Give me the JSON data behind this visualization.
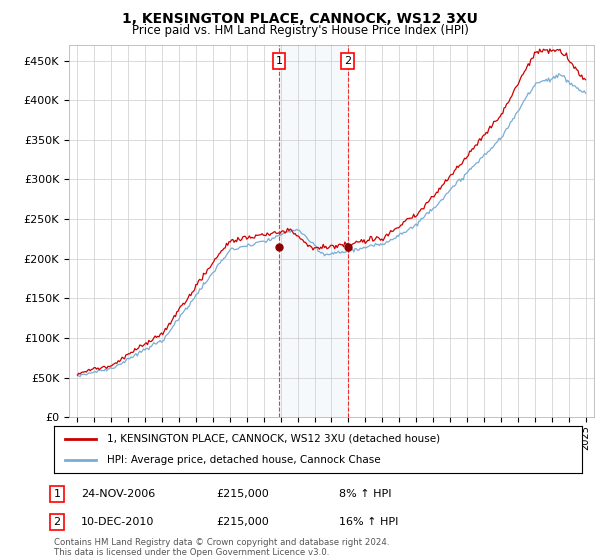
{
  "title": "1, KENSINGTON PLACE, CANNOCK, WS12 3XU",
  "subtitle": "Price paid vs. HM Land Registry's House Price Index (HPI)",
  "ylabel_ticks": [
    "£0",
    "£50K",
    "£100K",
    "£150K",
    "£200K",
    "£250K",
    "£300K",
    "£350K",
    "£400K",
    "£450K"
  ],
  "ytick_values": [
    0,
    50000,
    100000,
    150000,
    200000,
    250000,
    300000,
    350000,
    400000,
    450000
  ],
  "ylim": [
    0,
    470000
  ],
  "xlim_start": 1994.5,
  "xlim_end": 2025.5,
  "legend_line1": "1, KENSINGTON PLACE, CANNOCK, WS12 3XU (detached house)",
  "legend_line2": "HPI: Average price, detached house, Cannock Chase",
  "line1_color": "#cc0000",
  "line2_color": "#7aadd4",
  "marker1_x": 2006.9,
  "marker1_y": 215000,
  "marker1_label": "1",
  "marker2_x": 2010.95,
  "marker2_y": 215000,
  "marker2_label": "2",
  "annotation1_date": "24-NOV-2006",
  "annotation1_price": "£215,000",
  "annotation1_hpi": "8% ↑ HPI",
  "annotation2_date": "10-DEC-2010",
  "annotation2_price": "£215,000",
  "annotation2_hpi": "16% ↑ HPI",
  "footnote": "Contains HM Land Registry data © Crown copyright and database right 2024.\nThis data is licensed under the Open Government Licence v3.0.",
  "background_color": "#ffffff",
  "plot_bg_color": "#ffffff",
  "grid_color": "#cccccc"
}
